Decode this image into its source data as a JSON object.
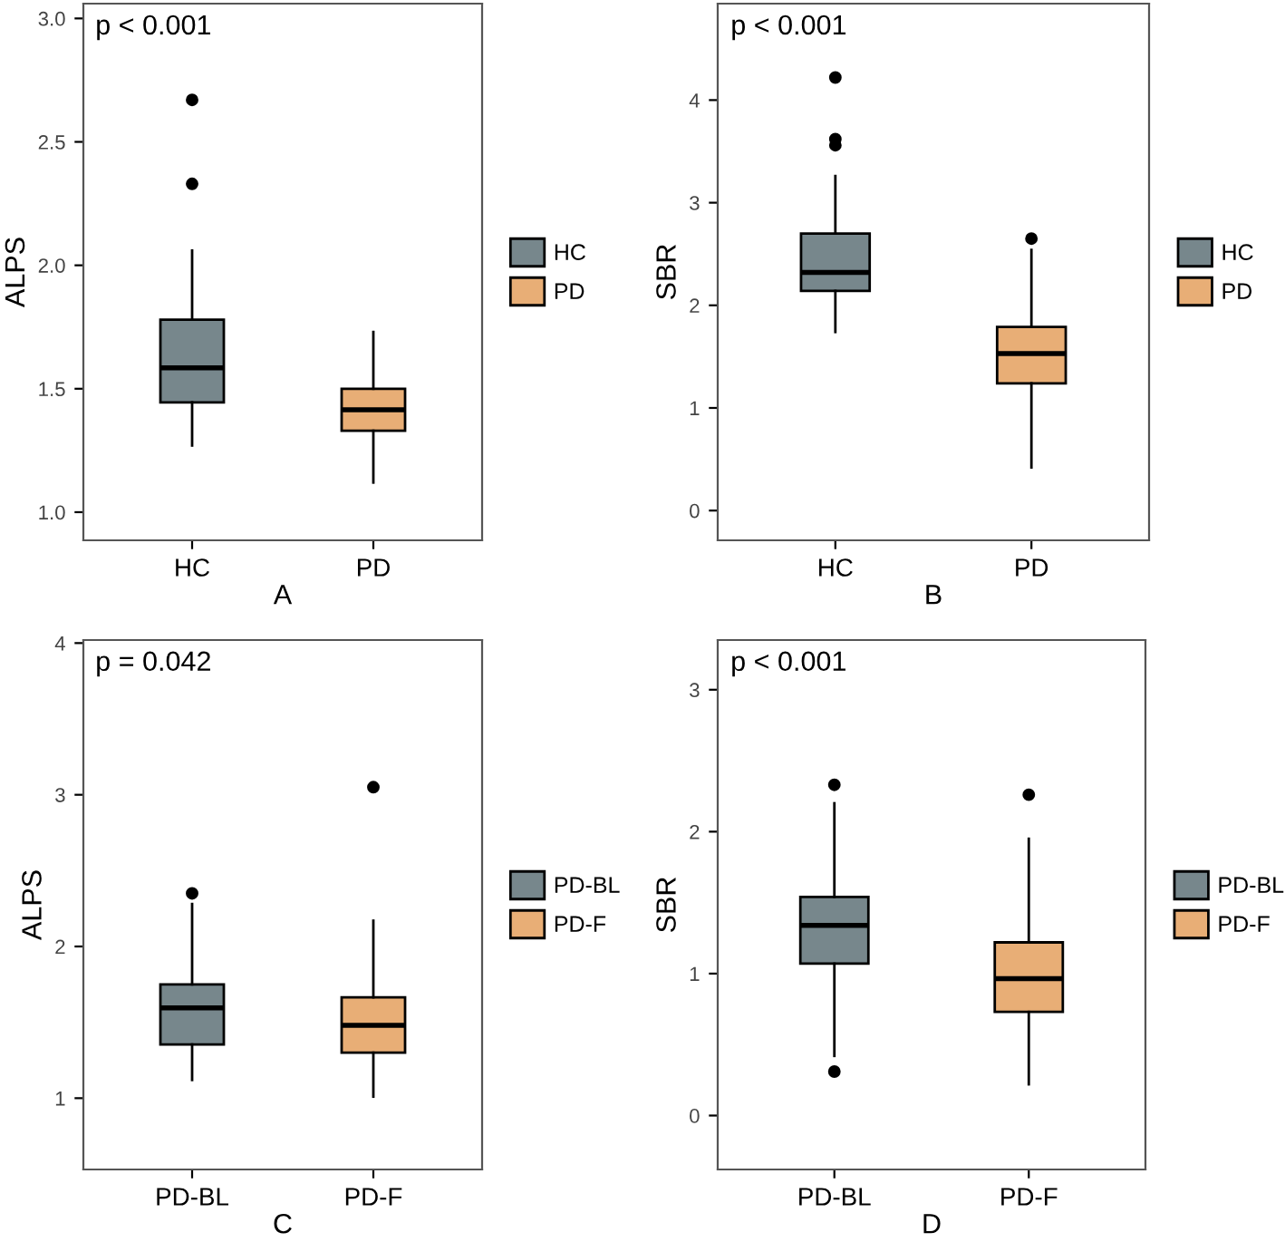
{
  "chart_data": [
    {
      "type": "box",
      "categories": [
        "HC",
        "PD"
      ],
      "xlabel": "A",
      "ylabel": "ALPS",
      "ylim": [
        0.886,
        3.06
      ],
      "yticks": [
        {
          "value": 1.0,
          "label": "1.0"
        },
        1.5,
        {
          "value": 2.0,
          "label": "2.0"
        },
        2.5,
        {
          "value": 3.0,
          "label": "3.0"
        }
      ],
      "grid": false,
      "legend": "right",
      "annotations": [
        "p < 0.001"
      ],
      "series": [
        {
          "name": "HC",
          "color": "#77878c",
          "boxes": [
            {
              "low": 1.27,
              "q1": 1.445,
              "median": 1.585,
              "q3": 1.78,
              "high": 2.06,
              "outliers": [
                2.33,
                2.67
              ]
            },
            null
          ]
        },
        {
          "name": "PD",
          "color": "#e8ae76",
          "boxes": [
            null,
            {
              "low": 1.12,
              "q1": 1.33,
              "median": 1.415,
              "q3": 1.5,
              "high": 1.73
            }
          ]
        }
      ]
    },
    {
      "type": "box",
      "categories": [
        "HC",
        "PD"
      ],
      "xlabel": "B",
      "ylabel": "SBR",
      "ylim": [
        -0.29,
        4.94
      ],
      "yticks": [
        0,
        1,
        2,
        3,
        4
      ],
      "grid": false,
      "legend": "right",
      "annotations": [
        "p < 0.001"
      ],
      "series": [
        {
          "name": "HC",
          "color": "#77878c",
          "boxes": [
            {
              "low": 1.74,
              "q1": 2.14,
              "median": 2.32,
              "q3": 2.7,
              "high": 3.26,
              "outliers": [
                3.56,
                3.62,
                4.22
              ]
            },
            null
          ]
        },
        {
          "name": "PD",
          "color": "#e8ae76",
          "boxes": [
            null,
            {
              "low": 0.42,
              "q1": 1.24,
              "median": 1.53,
              "q3": 1.79,
              "high": 2.54,
              "outliers": [
                2.65
              ]
            }
          ]
        }
      ]
    },
    {
      "type": "box",
      "categories": [
        "PD-BL",
        "PD-F"
      ],
      "xlabel": "C",
      "ylabel": "ALPS",
      "ylim": [
        0.53,
        4.02
      ],
      "yticks": [
        1,
        2,
        3,
        4
      ],
      "grid": false,
      "legend": "right",
      "annotations": [
        "p = 0.042"
      ],
      "series": [
        {
          "name": "PD-BL",
          "color": "#77878c",
          "boxes": [
            {
              "low": 1.12,
              "q1": 1.354,
              "median": 1.595,
              "q3": 1.75,
              "high": 2.28,
              "outliers": [
                2.35
              ]
            },
            null
          ]
        },
        {
          "name": "PD-F",
          "color": "#e8ae76",
          "boxes": [
            null,
            {
              "low": 1.01,
              "q1": 1.3,
              "median": 1.48,
              "q3": 1.665,
              "high": 2.17,
              "outliers": [
                3.05
              ]
            }
          ]
        }
      ]
    },
    {
      "type": "box",
      "categories": [
        "PD-BL",
        "PD-F"
      ],
      "xlabel": "D",
      "ylabel": "SBR",
      "ylim": [
        -0.38,
        3.35
      ],
      "yticks": [
        0,
        1,
        2,
        3
      ],
      "grid": false,
      "legend": "right",
      "annotations": [
        "p < 0.001"
      ],
      "series": [
        {
          "name": "PD-BL",
          "color": "#77878c",
          "boxes": [
            {
              "low": 0.42,
              "q1": 1.07,
              "median": 1.34,
              "q3": 1.54,
              "high": 2.2,
              "outliers": [
                0.31,
                2.33
              ]
            },
            null
          ]
        },
        {
          "name": "PD-F",
          "color": "#e8ae76",
          "boxes": [
            null,
            {
              "low": 0.22,
              "q1": 0.73,
              "median": 0.965,
              "q3": 1.22,
              "high": 1.95,
              "outliers": [
                2.26
              ]
            }
          ]
        }
      ]
    }
  ]
}
